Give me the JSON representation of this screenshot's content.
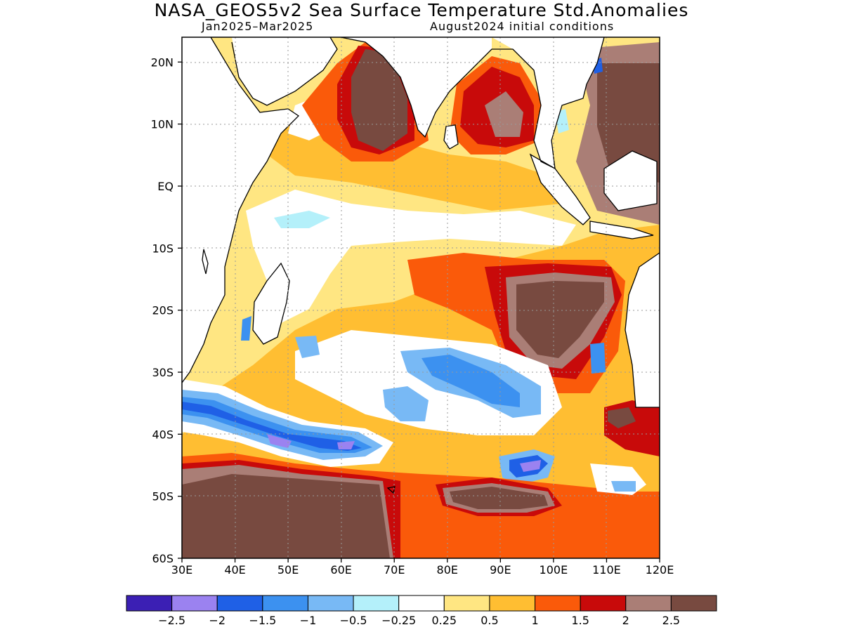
{
  "title": "NASA_GEOS5v2 Sea Surface Temperature Std.Anomalies",
  "subtitle_left": "Jan2025–Mar2025",
  "subtitle_right": "August2024 initial conditions",
  "map": {
    "lon_range": [
      30,
      120
    ],
    "lat_range": [
      -60,
      24
    ],
    "x_ticks": [
      "30E",
      "40E",
      "50E",
      "60E",
      "70E",
      "80E",
      "90E",
      "100E",
      "110E",
      "120E"
    ],
    "y_ticks": [
      "20N",
      "10N",
      "EQ",
      "10S",
      "20S",
      "30S",
      "40S",
      "50S",
      "60S"
    ],
    "y_tick_values": [
      20,
      10,
      0,
      -10,
      -20,
      -30,
      -40,
      -50,
      -60
    ]
  },
  "colorbar": {
    "colors": [
      "#3b1fb4",
      "#9b82f0",
      "#1f60e6",
      "#3c91f0",
      "#78b9f5",
      "#b4f0fa",
      "#ffffff",
      "#ffe682",
      "#ffbe32",
      "#fa5a0a",
      "#c80a0a",
      "#aa7e76",
      "#784a40"
    ],
    "labels": [
      "−2.5",
      "−2",
      "−1.5",
      "−1",
      "−0.5",
      "−0.25",
      "0.25",
      "0.5",
      "1",
      "1.5",
      "2",
      "2.5"
    ]
  },
  "colors": {
    "land": "#ffffff",
    "coast": "#000000",
    "grid": "#999999"
  }
}
